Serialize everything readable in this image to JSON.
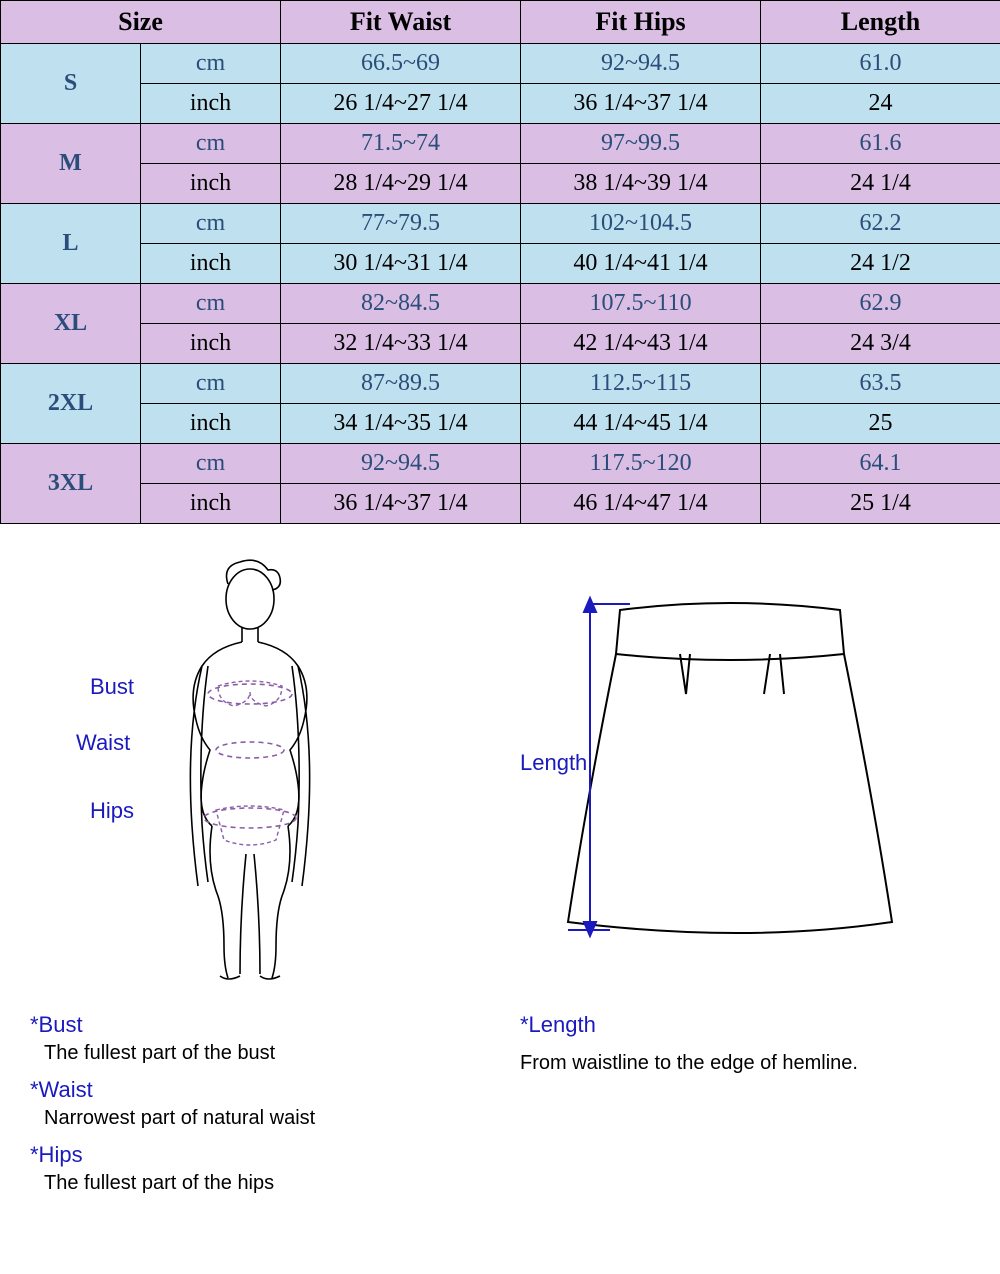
{
  "table": {
    "headers": [
      "Size",
      "Fit Waist",
      "Fit Hips",
      "Length"
    ],
    "unit_labels": {
      "cm": "cm",
      "inch": "inch"
    },
    "col_widths": {
      "size": 140,
      "unit": 140,
      "waist": 240,
      "hips": 240,
      "length": 240
    },
    "colors": {
      "header_bg": "#dabee3",
      "blue_bg": "#bfe0ee",
      "purple_bg": "#dabee3",
      "cm_text": "#2a4d7a",
      "inch_text": "#000000",
      "border": "#000000"
    },
    "sizes": [
      {
        "label": "S",
        "bg": "blue",
        "cm": {
          "waist": "66.5~69",
          "hips": "92~94.5",
          "length": "61.0"
        },
        "inch": {
          "waist": "26 1/4~27 1/4",
          "hips": "36 1/4~37 1/4",
          "length": "24"
        }
      },
      {
        "label": "M",
        "bg": "purple",
        "cm": {
          "waist": "71.5~74",
          "hips": "97~99.5",
          "length": "61.6"
        },
        "inch": {
          "waist": "28 1/4~29 1/4",
          "hips": "38 1/4~39 1/4",
          "length": "24 1/4"
        }
      },
      {
        "label": "L",
        "bg": "blue",
        "cm": {
          "waist": "77~79.5",
          "hips": "102~104.5",
          "length": "62.2"
        },
        "inch": {
          "waist": "30 1/4~31 1/4",
          "hips": "40 1/4~41 1/4",
          "length": "24 1/2"
        }
      },
      {
        "label": "XL",
        "bg": "purple",
        "cm": {
          "waist": "82~84.5",
          "hips": "107.5~110",
          "length": "62.9"
        },
        "inch": {
          "waist": "32 1/4~33 1/4",
          "hips": "42 1/4~43 1/4",
          "length": "24 3/4"
        }
      },
      {
        "label": "2XL",
        "bg": "blue",
        "cm": {
          "waist": "87~89.5",
          "hips": "112.5~115",
          "length": "63.5"
        },
        "inch": {
          "waist": "34 1/4~35 1/4",
          "hips": "44 1/4~45 1/4",
          "length": "25"
        }
      },
      {
        "label": "3XL",
        "bg": "purple",
        "cm": {
          "waist": "92~94.5",
          "hips": "117.5~120",
          "length": "64.1"
        },
        "inch": {
          "waist": "36 1/4~37 1/4",
          "hips": "46 1/4~47 1/4",
          "length": "25 1/4"
        }
      }
    ]
  },
  "body_diagram": {
    "labels": {
      "bust": "Bust",
      "waist": "Waist",
      "hips": "Hips"
    },
    "label_color": "#1a1abf",
    "line_color": "#000000",
    "measure_color": "#8b5fa8"
  },
  "skirt_diagram": {
    "length_label": "Length",
    "label_color": "#1a1abf",
    "line_color": "#000000",
    "arrow_color": "#1a1abf"
  },
  "definitions": {
    "bust": {
      "title": "*Bust",
      "text": "The fullest part of the bust"
    },
    "waist": {
      "title": "*Waist",
      "text": "Narrowest part of natural waist"
    },
    "hips": {
      "title": "*Hips",
      "text": "The fullest part of the hips"
    },
    "length": {
      "title": "*Length",
      "text": "From waistline to the edge of hemline."
    }
  }
}
